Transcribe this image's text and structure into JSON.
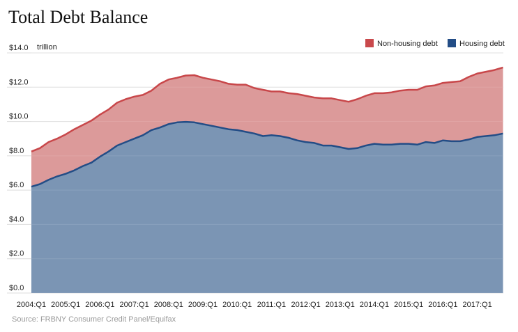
{
  "chart_data": {
    "type": "area",
    "title": "Total Debt Balance",
    "unit_label": "trillion",
    "source": "Source: FRBNY Consumer Credit Panel/Equifax",
    "stacked": true,
    "ylim": [
      0,
      14
    ],
    "y_ticks": [
      "$0.0",
      "$2.0",
      "$4.0",
      "$6.0",
      "$8.0",
      "$10.0",
      "$12.0",
      "$14.0"
    ],
    "x_ticks": [
      "2004:Q1",
      "2005:Q1",
      "2006:Q1",
      "2007:Q1",
      "2008:Q1",
      "2009:Q1",
      "2010:Q1",
      "2011:Q1",
      "2012:Q1",
      "2013:Q1",
      "2014:Q1",
      "2015:Q1",
      "2016:Q1",
      "2017:Q1"
    ],
    "grid": true,
    "legend_position": "top-right",
    "legend": [
      "Non-housing debt",
      "Housing debt"
    ],
    "colors": {
      "non_housing_fill": "#dc9a9a",
      "non_housing_line": "#c8474a",
      "housing_fill": "#7b95b4",
      "housing_line": "#234d86",
      "non_housing_swatch": "#c9494c",
      "housing_swatch": "#234d86"
    },
    "quarters": [
      "2004:Q1",
      "2004:Q2",
      "2004:Q3",
      "2004:Q4",
      "2005:Q1",
      "2005:Q2",
      "2005:Q3",
      "2005:Q4",
      "2006:Q1",
      "2006:Q2",
      "2006:Q3",
      "2006:Q4",
      "2007:Q1",
      "2007:Q2",
      "2007:Q3",
      "2007:Q4",
      "2008:Q1",
      "2008:Q2",
      "2008:Q3",
      "2008:Q4",
      "2009:Q1",
      "2009:Q2",
      "2009:Q3",
      "2009:Q4",
      "2010:Q1",
      "2010:Q2",
      "2010:Q3",
      "2010:Q4",
      "2011:Q1",
      "2011:Q2",
      "2011:Q3",
      "2011:Q4",
      "2012:Q1",
      "2012:Q2",
      "2012:Q3",
      "2012:Q4",
      "2013:Q1",
      "2013:Q2",
      "2013:Q3",
      "2013:Q4",
      "2014:Q1",
      "2014:Q2",
      "2014:Q3",
      "2014:Q4",
      "2015:Q1",
      "2015:Q2",
      "2015:Q3",
      "2015:Q4",
      "2016:Q1",
      "2016:Q2",
      "2016:Q3",
      "2016:Q4",
      "2017:Q1",
      "2017:Q2",
      "2017:Q3",
      "2017:Q4"
    ],
    "series": [
      {
        "name": "Housing debt",
        "values": [
          6.2,
          6.35,
          6.6,
          6.8,
          6.95,
          7.15,
          7.4,
          7.6,
          7.95,
          8.25,
          8.6,
          8.8,
          9.0,
          9.2,
          9.5,
          9.65,
          9.85,
          9.95,
          9.98,
          9.95,
          9.85,
          9.75,
          9.65,
          9.55,
          9.5,
          9.4,
          9.3,
          9.15,
          9.2,
          9.15,
          9.05,
          8.9,
          8.8,
          8.75,
          8.6,
          8.6,
          8.5,
          8.4,
          8.45,
          8.6,
          8.7,
          8.65,
          8.65,
          8.7,
          8.7,
          8.65,
          8.8,
          8.75,
          8.9,
          8.85,
          8.85,
          8.95,
          9.1,
          9.15,
          9.2,
          9.3
        ]
      },
      {
        "name": "Non-housing debt",
        "values": [
          2.05,
          2.1,
          2.2,
          2.2,
          2.3,
          2.4,
          2.4,
          2.45,
          2.45,
          2.45,
          2.5,
          2.5,
          2.45,
          2.35,
          2.3,
          2.55,
          2.6,
          2.6,
          2.7,
          2.75,
          2.7,
          2.7,
          2.7,
          2.65,
          2.65,
          2.75,
          2.65,
          2.7,
          2.55,
          2.6,
          2.6,
          2.7,
          2.7,
          2.65,
          2.75,
          2.75,
          2.75,
          2.75,
          2.85,
          2.9,
          2.95,
          3.0,
          3.05,
          3.1,
          3.15,
          3.2,
          3.25,
          3.35,
          3.35,
          3.45,
          3.5,
          3.65,
          3.7,
          3.75,
          3.8,
          3.85
        ]
      }
    ]
  }
}
